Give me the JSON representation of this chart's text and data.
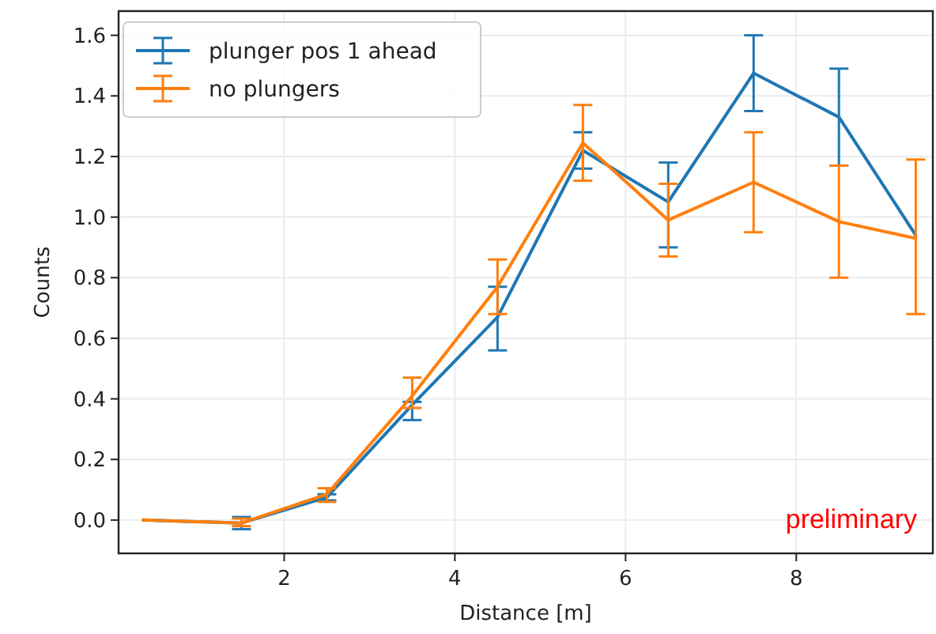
{
  "chart_data": {
    "type": "line",
    "xlabel": "Distance [m]",
    "ylabel": "Counts",
    "x": [
      0.35,
      1.5,
      2.5,
      3.5,
      4.5,
      5.5,
      6.5,
      7.5,
      8.5,
      9.4
    ],
    "series": [
      {
        "name": "plunger pos 1 ahead",
        "color": "#1f77b4",
        "values": [
          0,
          -0.01,
          0.075,
          0.38,
          0.67,
          1.22,
          1.05,
          1.475,
          1.33,
          0.94
        ],
        "errors": [
          null,
          [
            -0.03,
            0.01
          ],
          [
            0.065,
            0.085
          ],
          [
            0.33,
            0.39
          ],
          [
            0.56,
            0.77
          ],
          [
            1.16,
            1.28
          ],
          [
            0.9,
            1.18
          ],
          [
            1.35,
            1.6
          ],
          [
            1.17,
            1.49
          ],
          null
        ]
      },
      {
        "name": "no plungers",
        "color": "#ff7f0e",
        "values": [
          0,
          -0.01,
          0.085,
          0.41,
          0.77,
          1.245,
          0.99,
          1.115,
          0.985,
          0.93
        ],
        "errors": [
          null,
          [
            -0.02,
            0.005
          ],
          [
            0.06,
            0.105
          ],
          [
            0.37,
            0.47
          ],
          [
            0.68,
            0.86
          ],
          [
            1.12,
            1.37
          ],
          [
            0.87,
            1.11
          ],
          [
            0.95,
            1.28
          ],
          [
            0.8,
            1.17
          ],
          [
            0.68,
            1.19
          ]
        ]
      }
    ],
    "xlim": [
      0.06,
      9.6
    ],
    "xticks": [
      2,
      4,
      6,
      8
    ],
    "ylim": [
      -0.11,
      1.68
    ],
    "yticks": [
      {
        "value": 0,
        "label": "0.0"
      },
      {
        "value": 0.2,
        "label": "0.2"
      },
      {
        "value": 0.4,
        "label": "0.4"
      },
      {
        "value": 0.6,
        "label": "0.6"
      },
      {
        "value": 0.8,
        "label": "0.8"
      },
      {
        "value": 1,
        "label": "1.0"
      },
      {
        "value": 1.2,
        "label": "1.2"
      },
      {
        "value": 1.4,
        "label": "1.4"
      },
      {
        "value": 1.6,
        "label": "1.6"
      }
    ],
    "grid": true,
    "legend": "top left",
    "marker": "none",
    "line_style": "solid",
    "annotations": [
      "preliminary"
    ]
  }
}
